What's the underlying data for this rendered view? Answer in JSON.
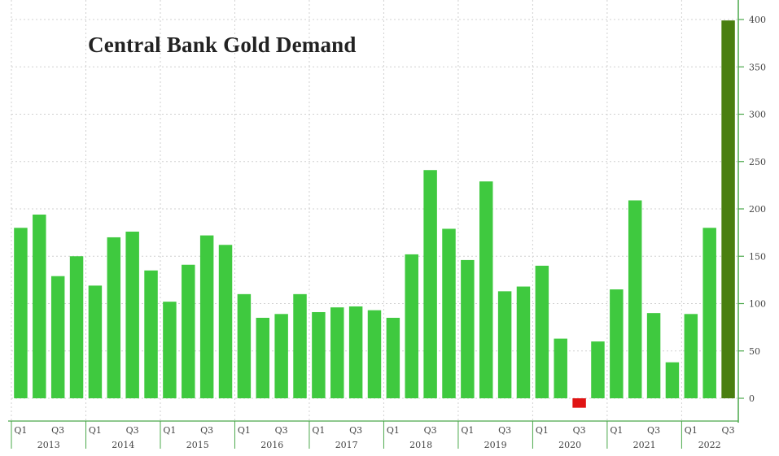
{
  "chart_data": {
    "type": "bar",
    "title": "Central Bank Gold Demand",
    "x": [
      "2013 Q1",
      "2013 Q2",
      "2013 Q3",
      "2013 Q4",
      "2014 Q1",
      "2014 Q2",
      "2014 Q3",
      "2014 Q4",
      "2015 Q1",
      "2015 Q2",
      "2015 Q3",
      "2015 Q4",
      "2016 Q1",
      "2016 Q2",
      "2016 Q3",
      "2016 Q4",
      "2017 Q1",
      "2017 Q2",
      "2017 Q3",
      "2017 Q4",
      "2018 Q1",
      "2018 Q2",
      "2018 Q3",
      "2018 Q4",
      "2019 Q1",
      "2019 Q2",
      "2019 Q3",
      "2019 Q4",
      "2020 Q1",
      "2020 Q2",
      "2020 Q3",
      "2020 Q4",
      "2021 Q1",
      "2021 Q2",
      "2021 Q3",
      "2021 Q4",
      "2022 Q1",
      "2022 Q2",
      "2022 Q3"
    ],
    "values": [
      180,
      194,
      129,
      150,
      119,
      170,
      176,
      135,
      102,
      141,
      172,
      162,
      110,
      85,
      89,
      110,
      91,
      96,
      97,
      93,
      85,
      152,
      241,
      179,
      146,
      229,
      113,
      118,
      140,
      63,
      -10,
      60,
      115,
      209,
      90,
      38,
      89,
      180,
      399
    ],
    "year_labels": [
      "2013",
      "2014",
      "2015",
      "2016",
      "2017",
      "2018",
      "2019",
      "2020",
      "2021",
      "2022"
    ],
    "quarter_labels": [
      "Q1",
      "Q3"
    ],
    "ylim": [
      -25,
      410
    ],
    "yticks": [
      0,
      50,
      100,
      150,
      200,
      250,
      300,
      350,
      400
    ],
    "grid": true,
    "colors": {
      "positive": "#3fc93f",
      "negative": "#e01414",
      "highlight": "#4a7f10",
      "grid": "#d0d0d0",
      "axis": "#4aa84a"
    }
  }
}
